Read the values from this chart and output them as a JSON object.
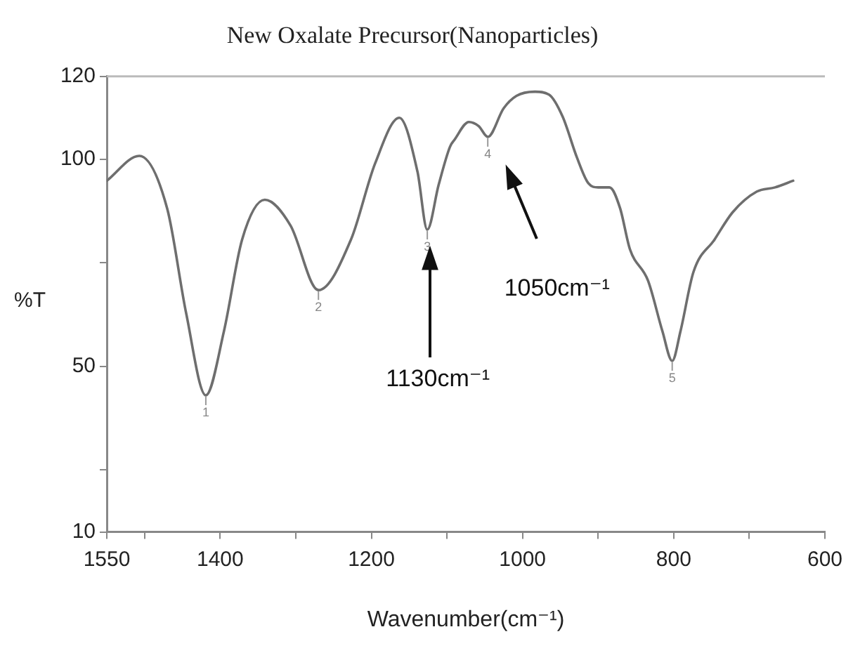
{
  "chart_data": {
    "type": "line",
    "title": "New Oxalate Precursor(Nanoparticles)",
    "xlabel": "Wavenumber(cm⁻¹)",
    "ylabel": "%T",
    "xlim": [
      1550,
      600
    ],
    "xticks": [
      1550,
      {
        "value": 1500,
        "label": null
      },
      1400,
      {
        "value": 1300,
        "label": null
      },
      1200,
      {
        "value": 1100,
        "label": null
      },
      1000,
      {
        "value": 900,
        "label": null
      },
      800,
      {
        "value": 700,
        "label": null
      },
      600
    ],
    "ylim": [
      10,
      120
    ],
    "yticks": [
      10,
      {
        "value": 25,
        "label": null
      },
      50,
      {
        "value": 75,
        "label": null
      },
      100,
      120
    ],
    "grid": false,
    "series": [
      {
        "color": "#6e6e6e",
        "x": [
          1550,
          1507,
          1470,
          1445,
          1419,
          1395,
          1371,
          1341,
          1307,
          1270,
          1227,
          1195,
          1163,
          1139,
          1126,
          1111,
          1096,
          1090,
          1071,
          1058,
          1046,
          1025,
          1008,
          984,
          965,
          947,
          928,
          913,
          900,
          885,
          871,
          858,
          834,
          815,
          802,
          791,
          774,
          746,
          722,
          690,
          666,
          642
        ],
        "values": [
          94.8,
          100.8,
          88,
          62.8,
          43,
          58.5,
          80.6,
          90.2,
          84,
          68.4,
          80.6,
          99,
          110,
          97,
          83,
          93.8,
          103,
          104.7,
          109,
          108,
          105.4,
          112.3,
          115.3,
          116.3,
          115.6,
          110.3,
          100.4,
          94.2,
          93.2,
          93.2,
          88.2,
          78.3,
          70.7,
          58.5,
          51.3,
          58.5,
          72.7,
          80.6,
          87.2,
          92.2,
          93.2,
          94.8
        ]
      }
    ],
    "annotations": [
      {
        "text": "1",
        "x": 1419,
        "y": 43
      },
      {
        "text": "2",
        "x": 1270,
        "y": 68.4
      },
      {
        "text": "3",
        "x": 1126,
        "y": 83
      },
      {
        "text": "4",
        "x": 1046,
        "y": 105.4
      },
      {
        "text": "5",
        "x": 802,
        "y": 51.3
      },
      "1130cm⁻¹",
      "1050cm⁻¹"
    ]
  }
}
